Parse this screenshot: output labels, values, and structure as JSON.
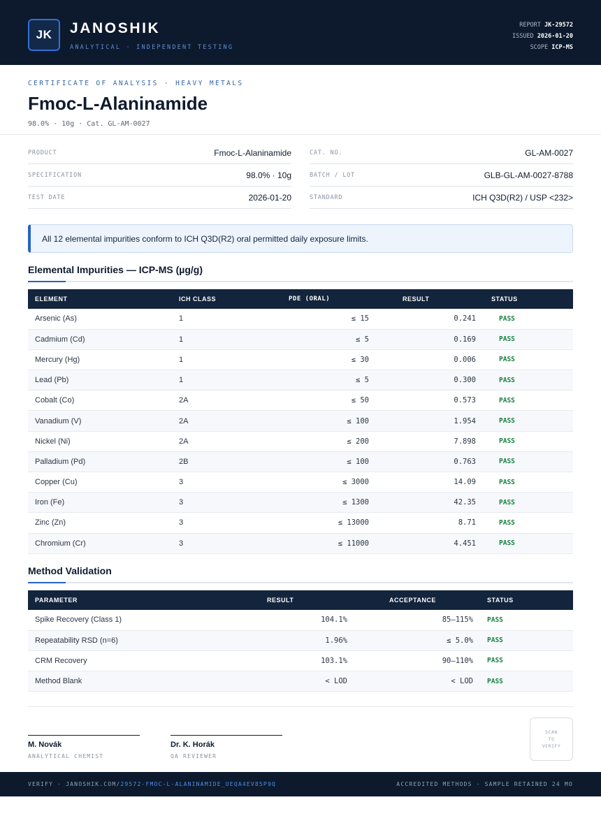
{
  "header": {
    "logo_initials": "JK",
    "brand": "JANOSHIK",
    "tagline": "ANALYTICAL · INDEPENDENT TESTING",
    "report_label": "REPORT",
    "report_value": "JK-29572",
    "issued_label": "ISSUED",
    "issued_value": "2026-01-20",
    "scope_label": "SCOPE",
    "scope_value": "ICP-MS"
  },
  "doc": {
    "eyebrow": "CERTIFICATE OF ANALYSIS · HEAVY METALS",
    "title": "Fmoc-L-Alaninamide",
    "subline": "98.0% · 10g  ·  Cat. GL-AM-0027"
  },
  "info": {
    "left": [
      {
        "label": "PRODUCT",
        "value": "Fmoc-L-Alaninamide"
      },
      {
        "label": "SPECIFICATION",
        "value": "98.0% · 10g"
      },
      {
        "label": "TEST DATE",
        "value": "2026-01-20"
      }
    ],
    "right": [
      {
        "label": "CAT. NO.",
        "value": "GL-AM-0027"
      },
      {
        "label": "BATCH / LOT",
        "value": "GLB-GL-AM-0027-8788"
      },
      {
        "label": "STANDARD",
        "value": "ICH Q3D(R2) / USP <232>"
      }
    ]
  },
  "notice": "All 12 elemental impurities conform to ICH Q3D(R2) oral permitted daily exposure limits.",
  "impurities": {
    "title": "Elemental Impurities — ICP-MS (µg/g)",
    "headers": [
      "ELEMENT",
      "ICH CLASS",
      "PDE (ORAL)",
      "RESULT",
      "STATUS"
    ],
    "rows": [
      [
        "Arsenic (As)",
        "1",
        "≤ 15",
        "0.241",
        "PASS"
      ],
      [
        "Cadmium (Cd)",
        "1",
        "≤ 5",
        "0.169",
        "PASS"
      ],
      [
        "Mercury (Hg)",
        "1",
        "≤ 30",
        "0.006",
        "PASS"
      ],
      [
        "Lead (Pb)",
        "1",
        "≤ 5",
        "0.300",
        "PASS"
      ],
      [
        "Cobalt (Co)",
        "2A",
        "≤ 50",
        "0.573",
        "PASS"
      ],
      [
        "Vanadium (V)",
        "2A",
        "≤ 100",
        "1.954",
        "PASS"
      ],
      [
        "Nickel (Ni)",
        "2A",
        "≤ 200",
        "7.898",
        "PASS"
      ],
      [
        "Palladium (Pd)",
        "2B",
        "≤ 100",
        "0.763",
        "PASS"
      ],
      [
        "Copper (Cu)",
        "3",
        "≤ 3000",
        "14.09",
        "PASS"
      ],
      [
        "Iron (Fe)",
        "3",
        "≤ 1300",
        "42.35",
        "PASS"
      ],
      [
        "Zinc (Zn)",
        "3",
        "≤ 13000",
        "8.71",
        "PASS"
      ],
      [
        "Chromium (Cr)",
        "3",
        "≤ 11000",
        "4.451",
        "PASS"
      ]
    ]
  },
  "validation": {
    "title": "Method Validation",
    "headers": [
      "PARAMETER",
      "RESULT",
      "ACCEPTANCE",
      "STATUS"
    ],
    "rows": [
      [
        "Spike Recovery (Class 1)",
        "104.1%",
        "85–115%",
        "PASS"
      ],
      [
        "Repeatability RSD (n=6)",
        "1.96%",
        "≤ 5.0%",
        "PASS"
      ],
      [
        "CRM Recovery",
        "103.1%",
        "90–110%",
        "PASS"
      ],
      [
        "Method Blank",
        "< LOD",
        "< LOD",
        "PASS"
      ]
    ]
  },
  "signatures": [
    {
      "name": "M. Novák",
      "role": "ANALYTICAL CHEMIST"
    },
    {
      "name": "Dr. K. Horák",
      "role": "QA REVIEWER"
    }
  ],
  "qr_text": "SCAN TO VERIFY",
  "footer": {
    "verify_prefix": "VERIFY · JANOSHIK.COM/",
    "verify_link": "29572-FMOC-L-ALANINAMIDE_UEQA4EV85P9Q",
    "right": "ACCREDITED METHODS · SAMPLE RETAINED 24 MO"
  },
  "colors": {
    "header_bg": "#0d1a2d",
    "accent": "#2563c4",
    "pass": "#17803f"
  }
}
